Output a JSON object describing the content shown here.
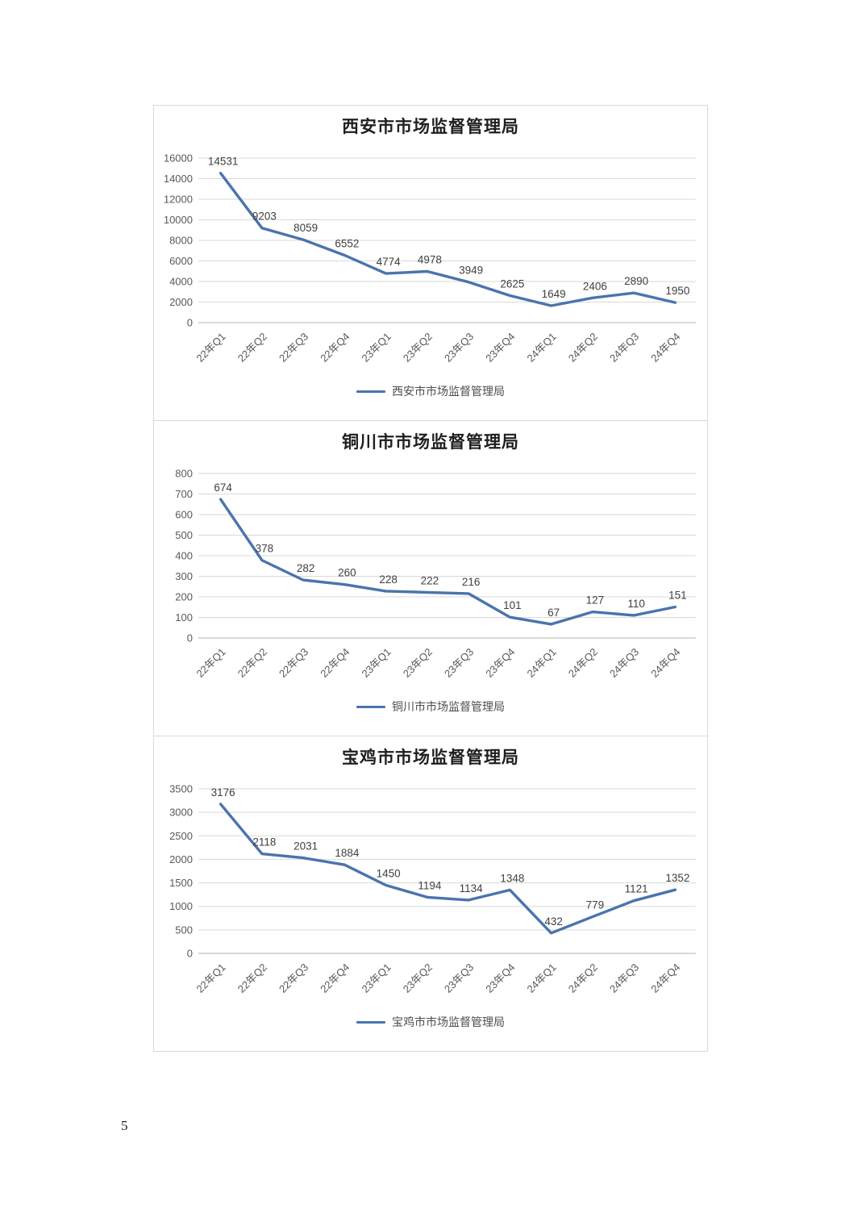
{
  "page": {
    "number": "5"
  },
  "colors": {
    "line": "#4a74ae",
    "grid": "#d9d9d9",
    "axis": "#b3b3b3",
    "tick_label": "#595959",
    "data_label": "#3f3f3f",
    "title": "#1f1f1f"
  },
  "chart_data": [
    {
      "type": "line",
      "title": "西安市市场监督管理局",
      "legend": "西安市市场监督管理局",
      "categories": [
        "22年Q1",
        "22年Q2",
        "22年Q3",
        "22年Q4",
        "23年Q1",
        "23年Q2",
        "23年Q3",
        "23年Q4",
        "24年Q1",
        "24年Q2",
        "24年Q3",
        "24年Q4"
      ],
      "values": [
        14531,
        9203,
        8059,
        6552,
        4774,
        4978,
        3949,
        2625,
        1649,
        2406,
        2890,
        1950
      ],
      "xlabel": "",
      "ylabel": "",
      "ylim": [
        0,
        16000
      ],
      "ystep": 2000,
      "grid": true,
      "legend_position": "bottom",
      "data_labels": true
    },
    {
      "type": "line",
      "title": "铜川市市场监督管理局",
      "legend": "铜川市市场监督管理局",
      "categories": [
        "22年Q1",
        "22年Q2",
        "22年Q3",
        "22年Q4",
        "23年Q1",
        "23年Q2",
        "23年Q3",
        "23年Q4",
        "24年Q1",
        "24年Q2",
        "24年Q3",
        "24年Q4"
      ],
      "values": [
        674,
        378,
        282,
        260,
        228,
        222,
        216,
        101,
        67,
        127,
        110,
        151
      ],
      "xlabel": "",
      "ylabel": "",
      "ylim": [
        0,
        800
      ],
      "ystep": 100,
      "grid": true,
      "legend_position": "bottom",
      "data_labels": true
    },
    {
      "type": "line",
      "title": "宝鸡市市场监督管理局",
      "legend": "宝鸡市市场监督管理局",
      "categories": [
        "22年Q1",
        "22年Q2",
        "22年Q3",
        "22年Q4",
        "23年Q1",
        "23年Q2",
        "23年Q3",
        "23年Q4",
        "24年Q1",
        "24年Q2",
        "24年Q3",
        "24年Q4"
      ],
      "values": [
        3176,
        2118,
        2031,
        1884,
        1450,
        1194,
        1134,
        1348,
        432,
        779,
        1121,
        1352
      ],
      "xlabel": "",
      "ylabel": "",
      "ylim": [
        0,
        3500
      ],
      "ystep": 500,
      "grid": true,
      "legend_position": "bottom",
      "data_labels": true
    }
  ]
}
